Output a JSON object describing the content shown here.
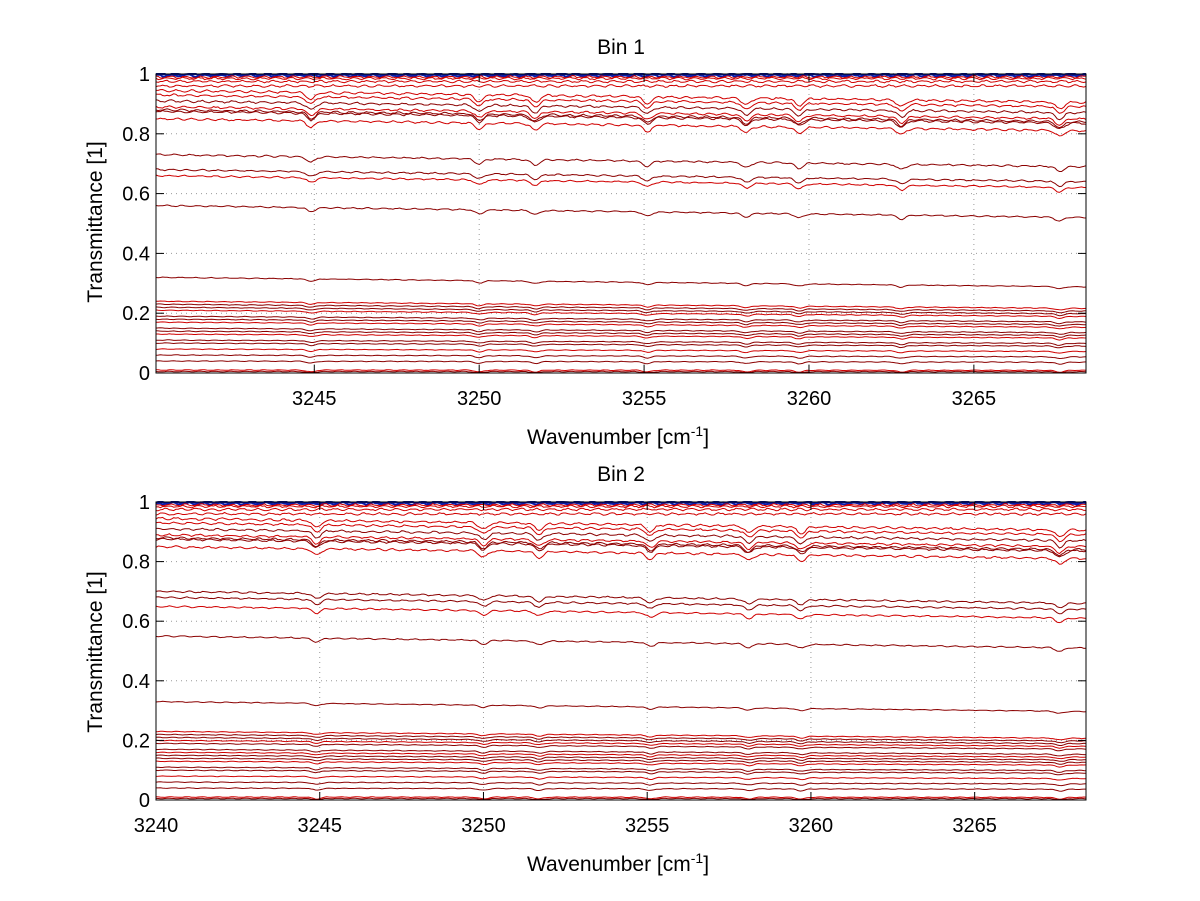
{
  "figure": {
    "background": "#ffffff"
  },
  "colors": {
    "trace_red": "#d00000",
    "trace_darkred": "#8b0000",
    "trace_blue": "#0a1aa8",
    "grid": "#9a9a9a"
  },
  "chart_data": [
    {
      "type": "line",
      "title": "Bin 1",
      "xlabel": "Wavenumber [cm",
      "xlabel_sup": "-1",
      "xlabel_end": "]",
      "ylabel": "Transmittance [1]",
      "xlim": [
        3240.2,
        3268.4
      ],
      "ylim": [
        0,
        1
      ],
      "xticks": [
        3245,
        3250,
        3255,
        3260,
        3265
      ],
      "xtick_labels": [
        "3245",
        "3250",
        "3255",
        "3260",
        "3265"
      ],
      "yticks": [
        0,
        0.2,
        0.4,
        0.6,
        0.8,
        1
      ],
      "ytick_labels": [
        "0",
        "0.2",
        "0.4",
        "0.6",
        "0.8",
        "1"
      ],
      "grid": true,
      "absorption_lines": [
        3244.9,
        3250.0,
        3251.7,
        3255.1,
        3258.1,
        3259.7,
        3262.8,
        3267.6
      ],
      "series_start_levels": [
        1.0,
        0.995,
        0.99,
        0.985,
        0.975,
        0.96,
        0.945,
        0.93,
        0.91,
        0.89,
        0.88,
        0.875,
        0.85,
        0.73,
        0.68,
        0.66,
        0.56,
        0.32,
        0.24,
        0.23,
        0.22,
        0.21,
        0.19,
        0.18,
        0.17,
        0.15,
        0.14,
        0.13,
        0.11,
        0.1,
        0.08,
        0.06,
        0.04,
        0.01,
        0.005
      ]
    },
    {
      "type": "line",
      "title": "Bin 2",
      "xlabel": "Wavenumber [cm",
      "xlabel_sup": "-1",
      "xlabel_end": "]",
      "ylabel": "Transmittance [1]",
      "xlim": [
        3240,
        3268.4
      ],
      "ylim": [
        0,
        1
      ],
      "xticks": [
        3240,
        3245,
        3250,
        3255,
        3260,
        3265
      ],
      "xtick_labels": [
        "3240",
        "3245",
        "3250",
        "3255",
        "3260",
        "3265"
      ],
      "yticks": [
        0,
        0.2,
        0.4,
        0.6,
        0.8,
        1
      ],
      "ytick_labels": [
        "0",
        "0.2",
        "0.4",
        "0.6",
        "0.8",
        "1"
      ],
      "grid": true,
      "absorption_lines": [
        3244.9,
        3250.0,
        3251.7,
        3255.1,
        3258.1,
        3259.7,
        3267.6
      ],
      "series_start_levels": [
        1.0,
        0.995,
        0.99,
        0.985,
        0.975,
        0.96,
        0.945,
        0.93,
        0.91,
        0.89,
        0.88,
        0.875,
        0.85,
        0.7,
        0.68,
        0.65,
        0.55,
        0.33,
        0.23,
        0.22,
        0.21,
        0.2,
        0.19,
        0.17,
        0.16,
        0.15,
        0.14,
        0.13,
        0.11,
        0.1,
        0.08,
        0.06,
        0.04,
        0.01,
        0.005
      ]
    }
  ]
}
